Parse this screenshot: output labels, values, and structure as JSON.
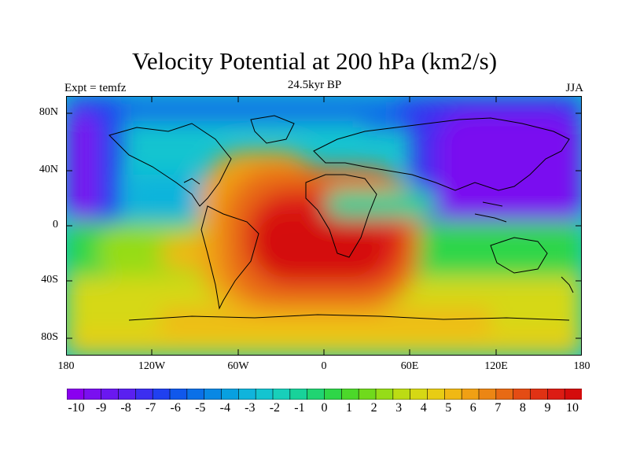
{
  "title": "Velocity Potential at 200 hPa (km2/s)",
  "subtitle": "24.5kyr BP",
  "left_label": "Expt = temfz",
  "right_label": "JJA",
  "lat_labels": [
    "80N",
    "40N",
    "0",
    "40S",
    "80S"
  ],
  "lon_labels": [
    "180",
    "120W",
    "60W",
    "0",
    "60E",
    "120E",
    "180"
  ],
  "colorbar": {
    "labels": [
      "-10",
      "-9",
      "-8",
      "-7",
      "-6",
      "-5",
      "-4",
      "-3",
      "-2",
      "-1",
      "0",
      "1",
      "2",
      "3",
      "4",
      "5",
      "6",
      "7",
      "8",
      "9",
      "10"
    ],
    "colors": [
      "#8a00f0",
      "#7a10f0",
      "#6a18f0",
      "#5a20f0",
      "#3c2ef0",
      "#2040f0",
      "#1058ec",
      "#0a70e8",
      "#0888e4",
      "#08a0e0",
      "#10b4dc",
      "#14c4d0",
      "#18cfba",
      "#18d29a",
      "#20d472",
      "#2ed648",
      "#4cd82a",
      "#70da1c",
      "#96dc18",
      "#bcdc14",
      "#d6d814",
      "#e8cc14",
      "#f0b814",
      "#f0a014",
      "#ec8614",
      "#e86a14",
      "#e44c14",
      "#e03214",
      "#dc1c14",
      "#d40c0c"
    ]
  },
  "chart_data": {
    "type": "heatmap",
    "title": "Velocity Potential at 200 hPa (km2/s)",
    "subtitle": "24.5kyr BP",
    "xlabel": "",
    "ylabel": "",
    "units": "km2/s",
    "xlim": [
      -180,
      180
    ],
    "ylim": [
      -90,
      90
    ],
    "x_ticks": [
      -180,
      -120,
      -60,
      0,
      60,
      120,
      180
    ],
    "y_ticks": [
      80,
      40,
      0,
      -40,
      -80
    ],
    "value_range": [
      -10,
      10
    ],
    "fields": [
      {
        "feature": "maximum over South Atlantic / South America",
        "lon": -20,
        "lat": -25,
        "value": 10
      },
      {
        "feature": "minimum over western Pacific / East Asia",
        "lon": 140,
        "lat": 20,
        "value": -10
      },
      {
        "feature": "secondary minimum over central North Pacific",
        "lon": -175,
        "lat": 30,
        "value": -9
      }
    ],
    "coastlines": true,
    "grid": false
  }
}
